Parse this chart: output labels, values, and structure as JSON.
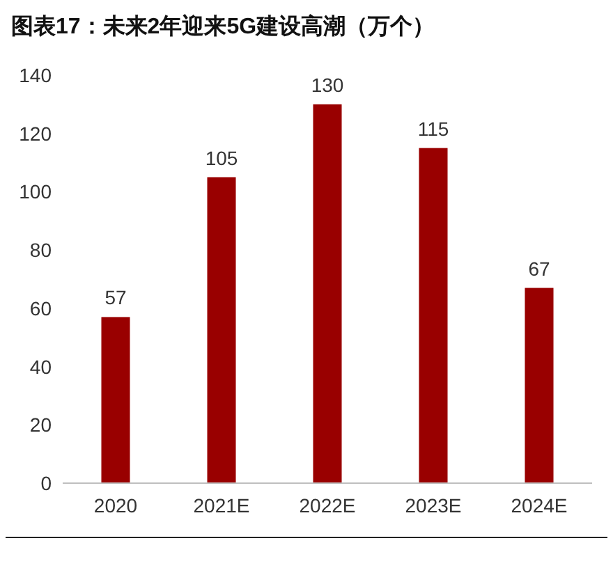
{
  "chart_data": {
    "type": "bar",
    "title": "图表17：未来2年迎来5G建设高潮（万个）",
    "categories": [
      "2020",
      "2021E",
      "2022E",
      "2023E",
      "2024E"
    ],
    "values": [
      57,
      105,
      130,
      115,
      67
    ],
    "color": "#990000",
    "ylim": [
      0,
      140
    ],
    "yticks": [
      0,
      20,
      40,
      60,
      80,
      100,
      120,
      140
    ],
    "data_labels": true
  }
}
